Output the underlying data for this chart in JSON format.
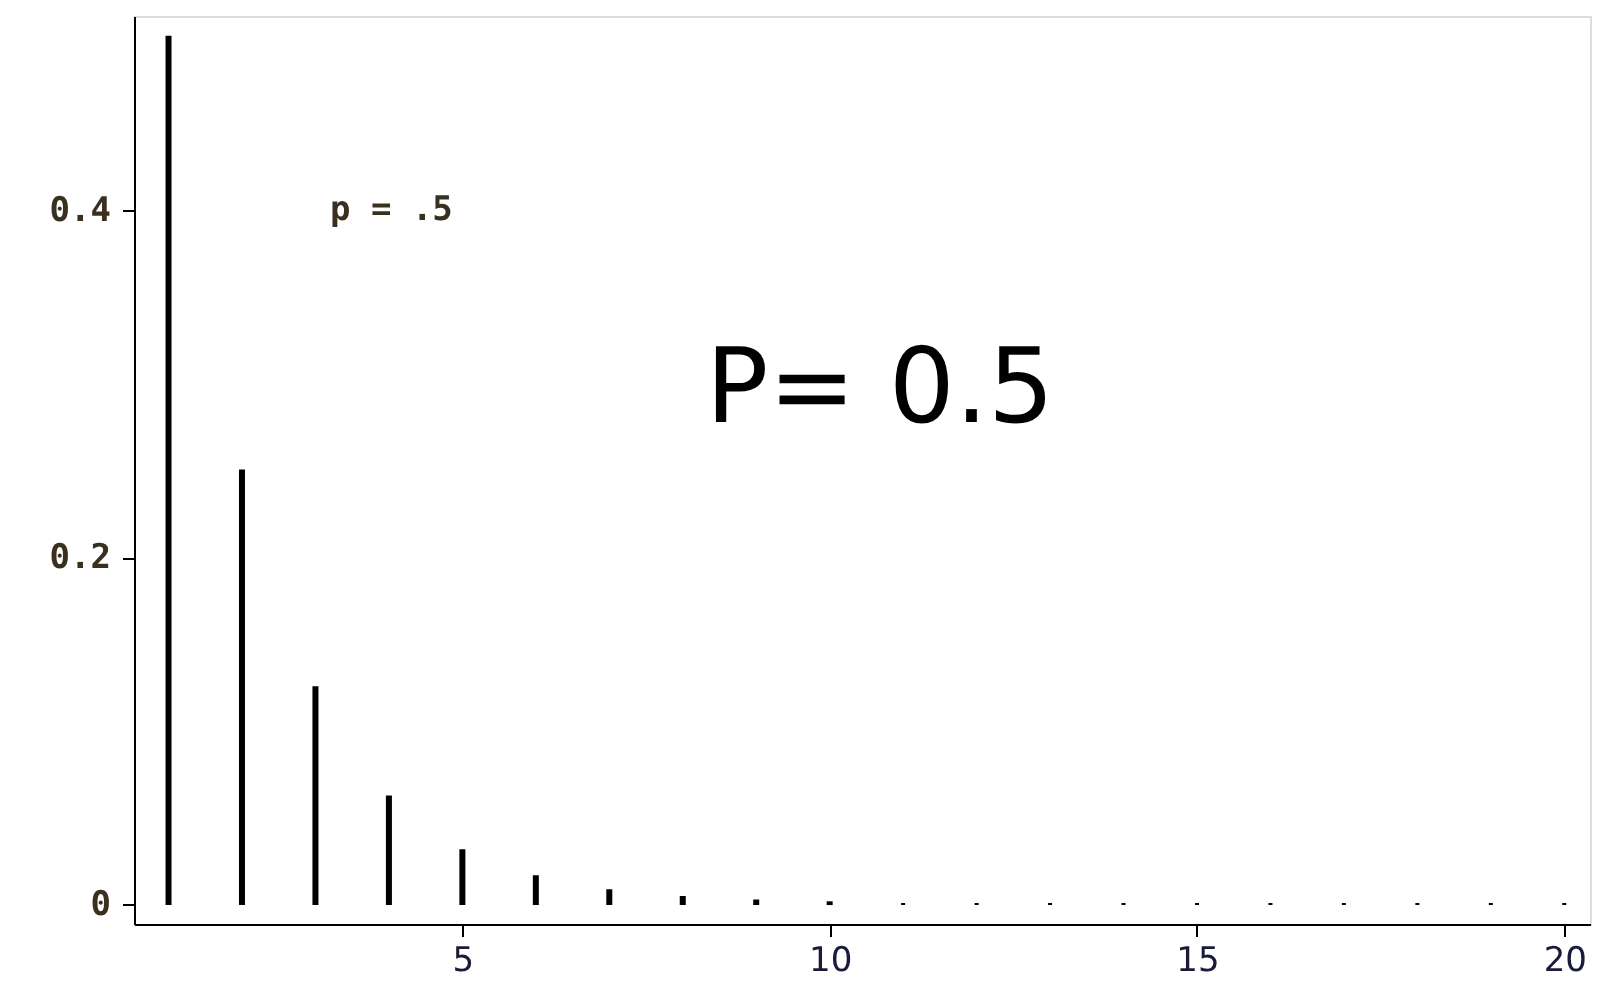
{
  "chart_data": {
    "type": "bar",
    "x": [
      1,
      2,
      3,
      4,
      5,
      6,
      7,
      8,
      9,
      10,
      11,
      12,
      13,
      14,
      15,
      16,
      17,
      18,
      19,
      20
    ],
    "values": [
      0.5,
      0.25,
      0.125,
      0.062,
      0.031,
      0.016,
      0.008,
      0.004,
      0.002,
      0.001,
      0,
      0,
      0,
      0,
      0,
      0,
      0,
      0,
      0,
      0
    ],
    "color": "#000000",
    "xlim": [
      0.53,
      20.35
    ],
    "xticks": [
      5,
      10,
      15,
      20
    ],
    "ylim": [
      -0.0115,
      0.512
    ],
    "yticks": [
      0,
      0.2,
      0.4
    ],
    "grid": false,
    "annotations": [
      "p = .5",
      "P= 0.5"
    ]
  }
}
